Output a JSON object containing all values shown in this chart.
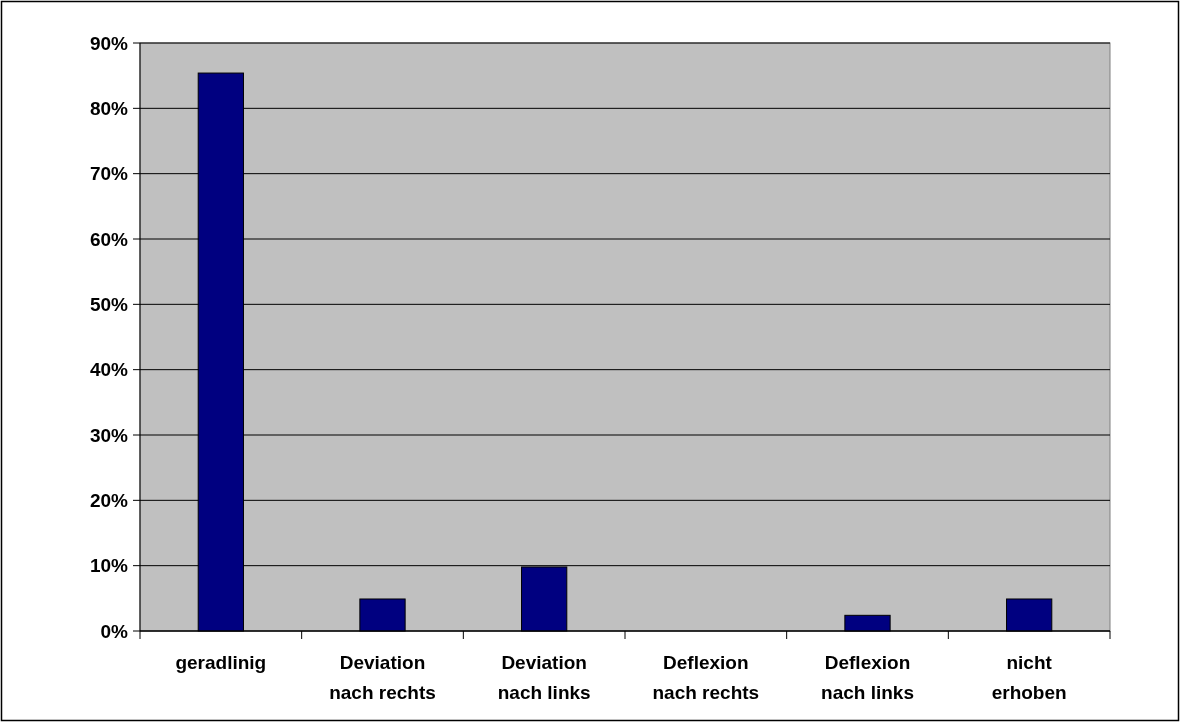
{
  "chart_data": {
    "type": "bar",
    "categories": [
      "geradlinig",
      "Deviation nach rechts",
      "Deviation nach links",
      "Deflexion nach rechts",
      "Deflexion nach links",
      "nicht erhoben"
    ],
    "values": [
      85.4,
      4.9,
      9.8,
      0,
      2.4,
      4.9
    ],
    "color": "#000080",
    "ylim": [
      0,
      90
    ],
    "yticks": [
      {
        "value": 0,
        "label": "0%"
      },
      {
        "value": 10,
        "label": "10%"
      },
      {
        "value": 20,
        "label": "20%"
      },
      {
        "value": 30,
        "label": "30%"
      },
      {
        "value": 40,
        "label": "40%"
      },
      {
        "value": 50,
        "label": "50%"
      },
      {
        "value": 60,
        "label": "60%"
      },
      {
        "value": 70,
        "label": "70%"
      },
      {
        "value": 80,
        "label": "80%"
      },
      {
        "value": 90,
        "label": "90%"
      }
    ],
    "grid": "y"
  }
}
